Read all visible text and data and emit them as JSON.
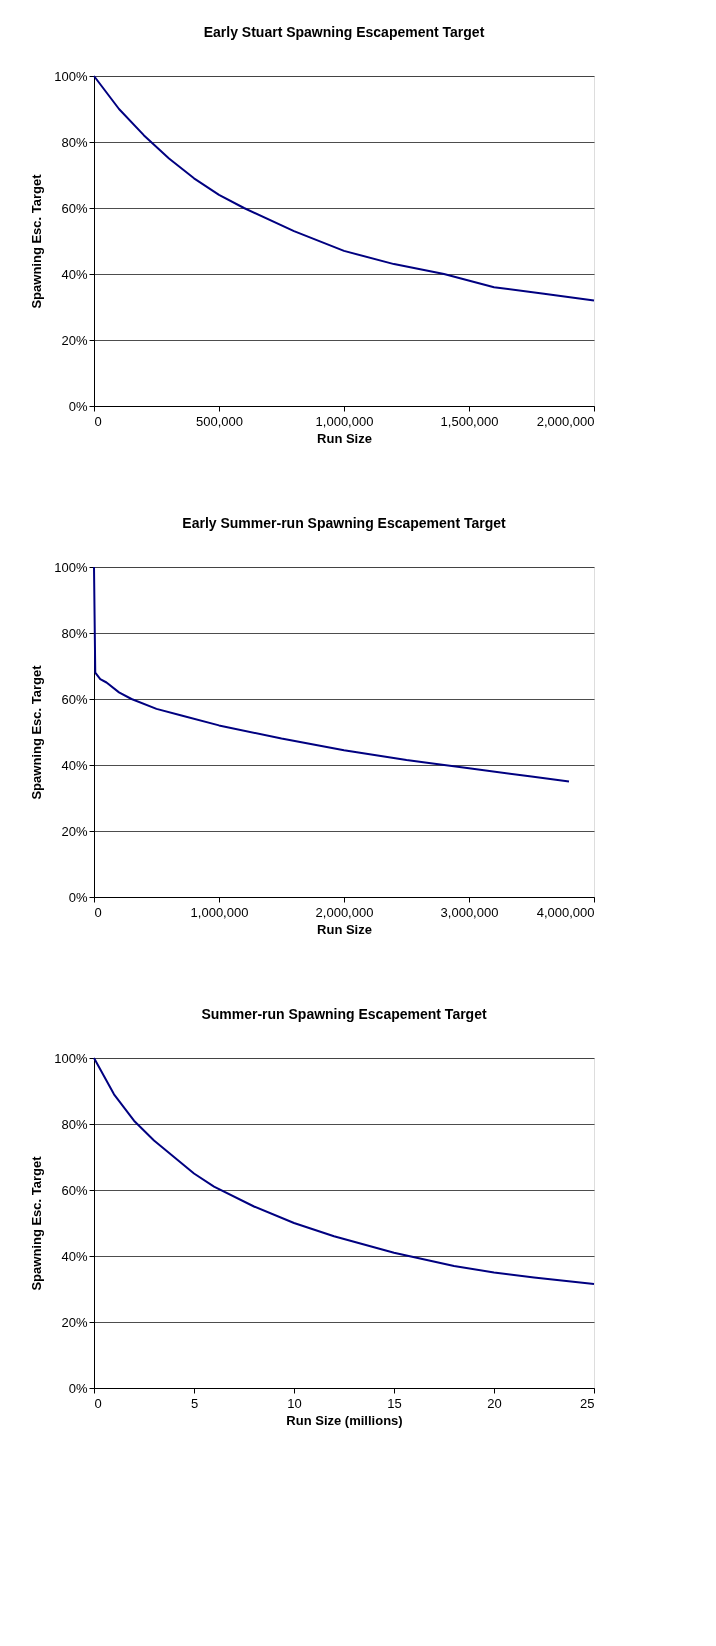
{
  "chart_data": [
    {
      "type": "line",
      "title": "Early Stuart Spawning Escapement Target",
      "xlabel": "Run Size",
      "ylabel": "Spawning Esc. Target",
      "x": [
        0,
        50000,
        100000,
        200000,
        300000,
        400000,
        500000,
        600000,
        800000,
        1000000,
        1200000,
        1400000,
        1600000,
        1800000,
        2000000
      ],
      "series": [
        {
          "color": "#000080",
          "values": [
            100,
            95,
            90,
            82,
            75,
            69,
            64,
            60,
            53,
            47,
            43,
            40,
            36,
            34,
            32
          ]
        }
      ],
      "xlim": [
        0,
        2000000
      ],
      "xticks": [
        0,
        {
          "value": 500000,
          "label": "500,000"
        },
        {
          "value": 1000000,
          "label": "1,000,000"
        },
        {
          "value": 1500000,
          "label": "1,500,000"
        },
        {
          "value": 2000000,
          "label": "2,000,000"
        }
      ],
      "ylim": [
        0,
        100
      ],
      "yticks": [
        {
          "value": 0,
          "label": "0%"
        },
        {
          "value": 20,
          "label": "20%"
        },
        {
          "value": 40,
          "label": "40%"
        },
        {
          "value": 60,
          "label": "60%"
        },
        {
          "value": 80,
          "label": "80%"
        },
        {
          "value": 100,
          "label": "100%"
        }
      ],
      "grid": "y",
      "marker": "none",
      "line_style": "solid"
    },
    {
      "type": "line",
      "title": "Early Summer-run Spawning Escapement Target",
      "xlabel": "Run Size",
      "ylabel": "Spawning Esc. Target",
      "x": [
        0,
        10000,
        50000,
        100000,
        200000,
        300000,
        500000,
        700000,
        1000000,
        1500000,
        2000000,
        2500000,
        3000000,
        3500000,
        3800000
      ],
      "series": [
        {
          "color": "#000080",
          "values": [
            100,
            68,
            66,
            65,
            62,
            60,
            57,
            55,
            52,
            48,
            44.5,
            41.5,
            39,
            36.5,
            35
          ]
        }
      ],
      "xlim": [
        0,
        4000000
      ],
      "xticks": [
        0,
        {
          "value": 1000000,
          "label": "1,000,000"
        },
        {
          "value": 2000000,
          "label": "2,000,000"
        },
        {
          "value": 3000000,
          "label": "3,000,000"
        },
        {
          "value": 4000000,
          "label": "4,000,000"
        }
      ],
      "ylim": [
        0,
        100
      ],
      "yticks": [
        {
          "value": 0,
          "label": "0%"
        },
        {
          "value": 20,
          "label": "20%"
        },
        {
          "value": 40,
          "label": "40%"
        },
        {
          "value": 60,
          "label": "60%"
        },
        {
          "value": 80,
          "label": "80%"
        },
        {
          "value": 100,
          "label": "100%"
        }
      ],
      "grid": "y",
      "marker": "none",
      "line_style": "solid"
    },
    {
      "type": "line",
      "title": "Summer-run Spawning Escapement Target",
      "xlabel": "Run Size (millions)",
      "ylabel": "Spawning Esc. Target",
      "x": [
        0,
        1,
        2,
        3,
        4,
        5,
        6,
        8,
        10,
        12,
        15,
        18,
        20,
        22,
        25
      ],
      "series": [
        {
          "color": "#000080",
          "values": [
            100,
            89,
            81,
            75,
            70,
            65,
            61,
            55,
            50,
            46,
            41,
            37,
            35,
            33.5,
            31.5
          ]
        }
      ],
      "xlim": [
        0,
        25
      ],
      "xticks": [
        0,
        5,
        10,
        15,
        20,
        25
      ],
      "ylim": [
        0,
        100
      ],
      "yticks": [
        {
          "value": 0,
          "label": "0%"
        },
        {
          "value": 20,
          "label": "20%"
        },
        {
          "value": 40,
          "label": "40%"
        },
        {
          "value": 60,
          "label": "60%"
        },
        {
          "value": 80,
          "label": "80%"
        },
        {
          "value": 100,
          "label": "100%"
        }
      ],
      "grid": "y",
      "marker": "none",
      "line_style": "solid"
    }
  ]
}
